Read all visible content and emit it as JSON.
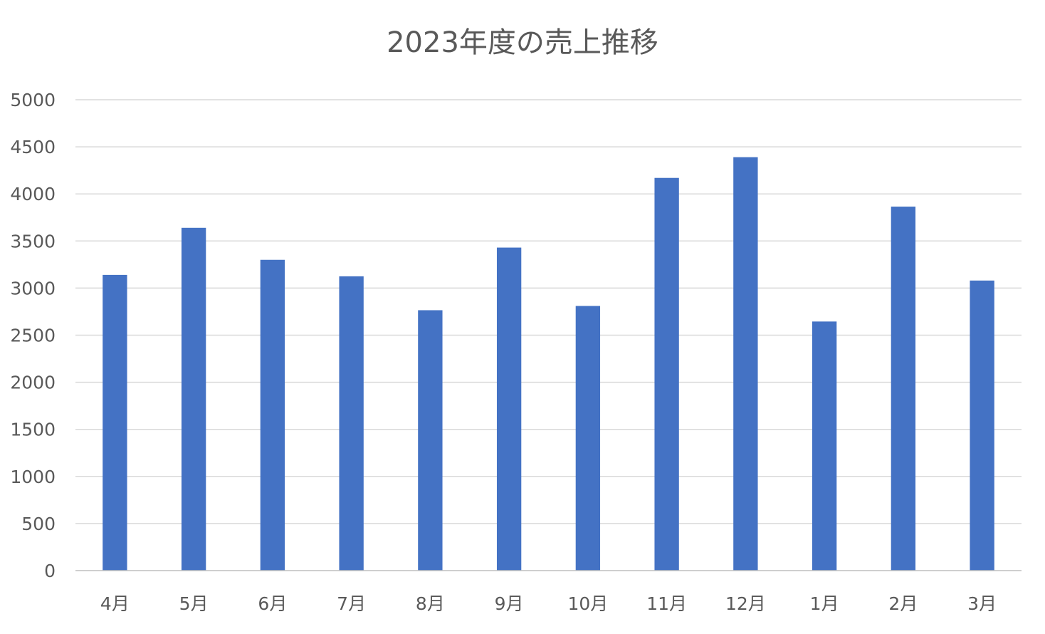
{
  "chart_data": {
    "type": "bar",
    "title": "2023年度の売上推移",
    "xlabel": "",
    "ylabel": "",
    "categories": [
      "4月",
      "5月",
      "6月",
      "7月",
      "8月",
      "9月",
      "10月",
      "11月",
      "12月",
      "1月",
      "2月",
      "3月"
    ],
    "values": [
      3140,
      3640,
      3300,
      3125,
      2765,
      3430,
      2810,
      4170,
      4390,
      2645,
      3865,
      3080
    ],
    "ylim": [
      0,
      5000
    ],
    "yticks": [
      0,
      500,
      1000,
      1500,
      2000,
      2500,
      3000,
      3500,
      4000,
      4500,
      5000
    ],
    "grid": true,
    "legend": "none",
    "bar_color": "#4472C4",
    "text_color": "#595959",
    "grid_color": "#D9D9D9"
  }
}
